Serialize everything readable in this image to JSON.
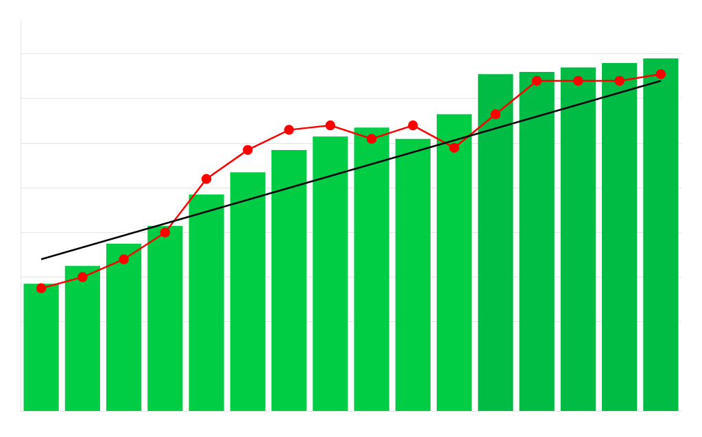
{
  "chart_data": {
    "type": "bar",
    "categories": [
      null,
      null,
      null,
      null,
      null,
      null,
      null,
      null,
      null,
      null,
      null,
      null,
      null,
      null,
      null,
      null
    ],
    "series": [
      {
        "name": null,
        "type": "bar",
        "values": [
          57,
          65,
          75,
          83,
          97,
          107,
          117,
          123,
          127,
          122,
          133,
          151,
          152,
          154,
          156,
          158
        ],
        "colors": [
          "#00CC44",
          "#00CC44",
          "#00CC44",
          "#00CC44",
          "#00CC44",
          "#00CC44",
          "#00CC44",
          "#00CC44",
          "#00CC44",
          "#00CC44",
          "#00CC44",
          "#00BB44",
          "#00BB44",
          "#00BB44",
          "#00BB44",
          "#00BB44"
        ]
      },
      {
        "name": null,
        "type": "line",
        "color": "#FF0000",
        "marker": "circle",
        "line_style": "solid",
        "values": [
          55,
          60,
          68,
          80,
          104,
          117,
          126,
          128,
          122,
          128,
          118,
          133,
          148,
          148,
          148,
          151
        ]
      },
      {
        "name": null,
        "type": "line",
        "color": "#000000",
        "marker": "none",
        "line_style": "solid",
        "values": [
          68,
          null,
          null,
          null,
          null,
          null,
          null,
          null,
          null,
          null,
          null,
          null,
          null,
          null,
          null,
          148
        ]
      }
    ],
    "ylim": [
      0,
      175
    ],
    "yticks": [
      40,
      60,
      80,
      100,
      120,
      140,
      160
    ],
    "grid": true,
    "legend": false,
    "tick_labels": false
  }
}
